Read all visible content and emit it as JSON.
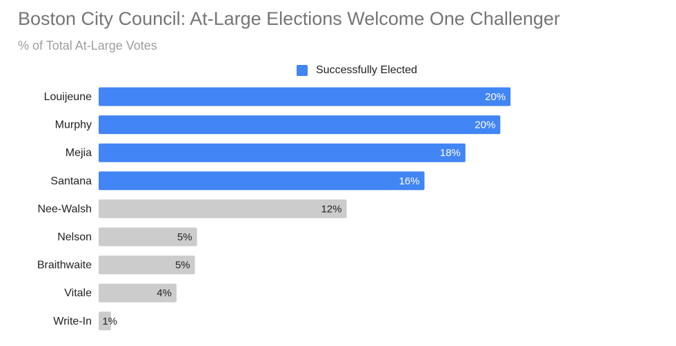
{
  "chart_data": {
    "type": "bar",
    "orientation": "horizontal",
    "title": "Boston City Council: At-Large Elections Welcome One Challenger",
    "subtitle": "% of Total At-Large Votes",
    "categories": [
      "Louijeune",
      "Murphy",
      "Mejia",
      "Santana",
      "Nee-Walsh",
      "Nelson",
      "Braithwaite",
      "Vitale",
      "Write-In"
    ],
    "values": [
      20.1,
      19.6,
      17.9,
      15.9,
      12.1,
      4.8,
      4.7,
      3.8,
      0.6
    ],
    "value_labels": [
      "20%",
      "20%",
      "18%",
      "16%",
      "12%",
      "5%",
      "5%",
      "4%",
      "1%"
    ],
    "elected": [
      true,
      true,
      true,
      true,
      false,
      false,
      false,
      false,
      false
    ],
    "legend": {
      "label": "Successfully Elected",
      "position": "top"
    },
    "xlim": [
      0,
      27.5
    ],
    "grid": false,
    "colors": {
      "elected": "#4285f4",
      "not_elected": "#cccccc",
      "elected_label": "#ffffff",
      "not_elected_label": "#222222"
    }
  }
}
